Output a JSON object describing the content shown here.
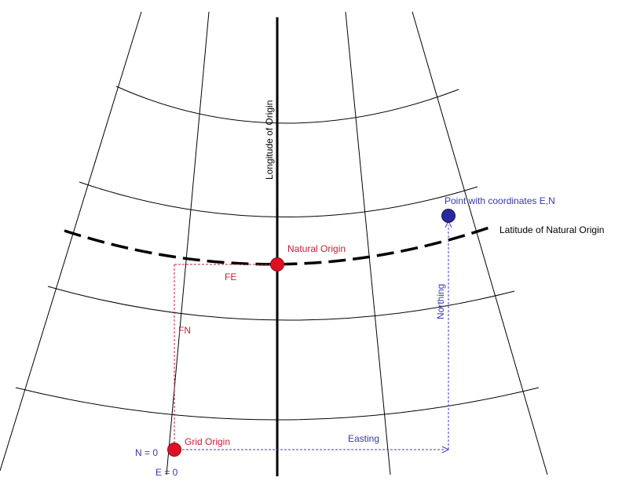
{
  "labels": {
    "longitude_of_origin": "Longitude of Origin",
    "latitude_of_natural_origin": "Latitude of Natural Origin",
    "natural_origin": "Natural Origin",
    "point_en": "Point with coordinates E,N",
    "fe": "FE",
    "fn": "FN",
    "northing": "Northing",
    "easting": "Easting",
    "grid_origin": "Grid Origin",
    "n0": "N = 0",
    "e0": "E = 0"
  },
  "colors": {
    "grid_line": "#000000",
    "origin_marker": "#dd1122",
    "point_marker": "#2a2a9a",
    "red_text": "#cc1f33",
    "blue_text": "#3838a8"
  }
}
